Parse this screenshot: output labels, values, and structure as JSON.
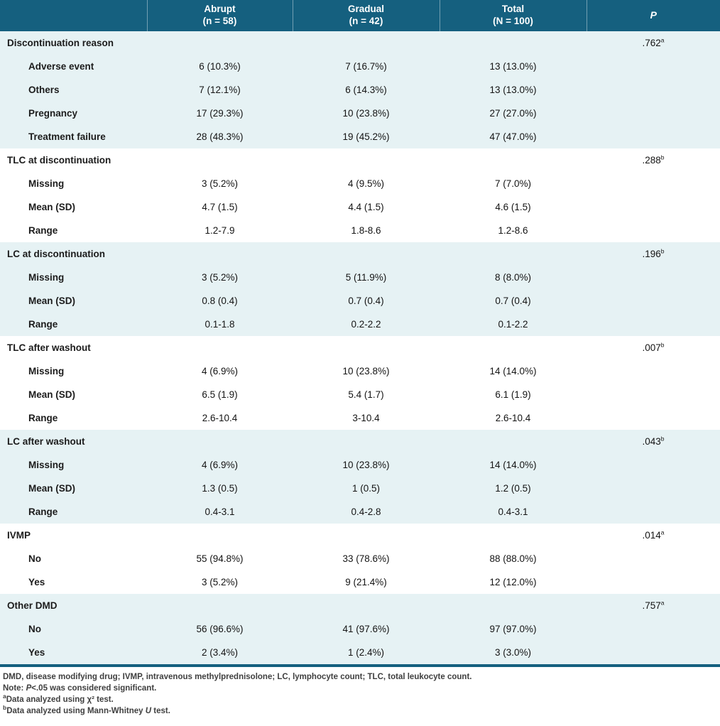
{
  "colors": {
    "header_bg": "#15607f",
    "band_bg": "#e6f2f4",
    "bottom_rule": "#15607f",
    "header_text": "#ffffff",
    "label_text": "#1c1c1c",
    "value_text": "#141414",
    "footnote_text": "#3f3f3f"
  },
  "header": {
    "columns": [
      {
        "line1": "Abrupt",
        "line2": "(n = 58)"
      },
      {
        "line1": "Gradual",
        "line2": "(n = 42)"
      },
      {
        "line1": "Total",
        "line2": "(N = 100)"
      }
    ],
    "p_label": "P"
  },
  "sections": [
    {
      "label": "Discontinuation reason",
      "p": ".762",
      "p_sup": "a",
      "rows": [
        {
          "label": "Adverse event",
          "abrupt": "6 (10.3%)",
          "gradual": "7 (16.7%)",
          "total": "13 (13.0%)"
        },
        {
          "label": "Others",
          "abrupt": "7 (12.1%)",
          "gradual": "6 (14.3%)",
          "total": "13 (13.0%)"
        },
        {
          "label": "Pregnancy",
          "abrupt": "17 (29.3%)",
          "gradual": "10 (23.8%)",
          "total": "27 (27.0%)"
        },
        {
          "label": "Treatment failure",
          "abrupt": "28 (48.3%)",
          "gradual": "19 (45.2%)",
          "total": "47 (47.0%)"
        }
      ]
    },
    {
      "label": "TLC at discontinuation",
      "p": ".288",
      "p_sup": "b",
      "rows": [
        {
          "label": "Missing",
          "abrupt": "3 (5.2%)",
          "gradual": "4 (9.5%)",
          "total": "7 (7.0%)"
        },
        {
          "label": "Mean (SD)",
          "abrupt": "4.7 (1.5)",
          "gradual": "4.4 (1.5)",
          "total": "4.6 (1.5)"
        },
        {
          "label": "Range",
          "abrupt": "1.2-7.9",
          "gradual": "1.8-8.6",
          "total": "1.2-8.6"
        }
      ]
    },
    {
      "label": "LC at discontinuation",
      "p": ".196",
      "p_sup": "b",
      "rows": [
        {
          "label": "Missing",
          "abrupt": "3 (5.2%)",
          "gradual": "5 (11.9%)",
          "total": "8 (8.0%)"
        },
        {
          "label": "Mean (SD)",
          "abrupt": "0.8 (0.4)",
          "gradual": "0.7 (0.4)",
          "total": "0.7 (0.4)"
        },
        {
          "label": "Range",
          "abrupt": "0.1-1.8",
          "gradual": "0.2-2.2",
          "total": "0.1-2.2"
        }
      ]
    },
    {
      "label": "TLC after washout",
      "p": ".007",
      "p_sup": "b",
      "rows": [
        {
          "label": "Missing",
          "abrupt": "4 (6.9%)",
          "gradual": "10 (23.8%)",
          "total": "14 (14.0%)"
        },
        {
          "label": "Mean (SD)",
          "abrupt": "6.5 (1.9)",
          "gradual": "5.4 (1.7)",
          "total": "6.1 (1.9)"
        },
        {
          "label": "Range",
          "abrupt": "2.6-10.4",
          "gradual": "3-10.4",
          "total": "2.6-10.4"
        }
      ]
    },
    {
      "label": "LC after washout",
      "p": ".043",
      "p_sup": "b",
      "rows": [
        {
          "label": "Missing",
          "abrupt": "4 (6.9%)",
          "gradual": "10 (23.8%)",
          "total": "14 (14.0%)"
        },
        {
          "label": "Mean (SD)",
          "abrupt": "1.3 (0.5)",
          "gradual": "1 (0.5)",
          "total": "1.2 (0.5)"
        },
        {
          "label": "Range",
          "abrupt": "0.4-3.1",
          "gradual": "0.4-2.8",
          "total": "0.4-3.1"
        }
      ]
    },
    {
      "label": "IVMP",
      "p": ".014",
      "p_sup": "a",
      "rows": [
        {
          "label": "No",
          "abrupt": "55 (94.8%)",
          "gradual": "33 (78.6%)",
          "total": "88 (88.0%)"
        },
        {
          "label": "Yes",
          "abrupt": "3 (5.2%)",
          "gradual": "9 (21.4%)",
          "total": "12 (12.0%)"
        }
      ]
    },
    {
      "label": "Other DMD",
      "p": ".757",
      "p_sup": "a",
      "rows": [
        {
          "label": "No",
          "abrupt": "56 (96.6%)",
          "gradual": "41 (97.6%)",
          "total": "97 (97.0%)"
        },
        {
          "label": "Yes",
          "abrupt": "2 (3.4%)",
          "gradual": "1 (2.4%)",
          "total": "3 (3.0%)"
        }
      ]
    }
  ],
  "footnotes": {
    "abbreviations": "DMD, disease modifying drug; IVMP, intravenous methylprednisolone; LC, lymphocyte count; TLC, total leukocyte count.",
    "note_prefix": "Note: ",
    "note_p": "P",
    "note_rest": "<.05 was considered significant.",
    "fn_a_marker": "a",
    "fn_a_text": "Data analyzed using χ² test.",
    "fn_b_marker": "b",
    "fn_b_prefix": "Data analyzed using Mann-Whitney ",
    "fn_b_italic": "U",
    "fn_b_suffix": " test."
  }
}
